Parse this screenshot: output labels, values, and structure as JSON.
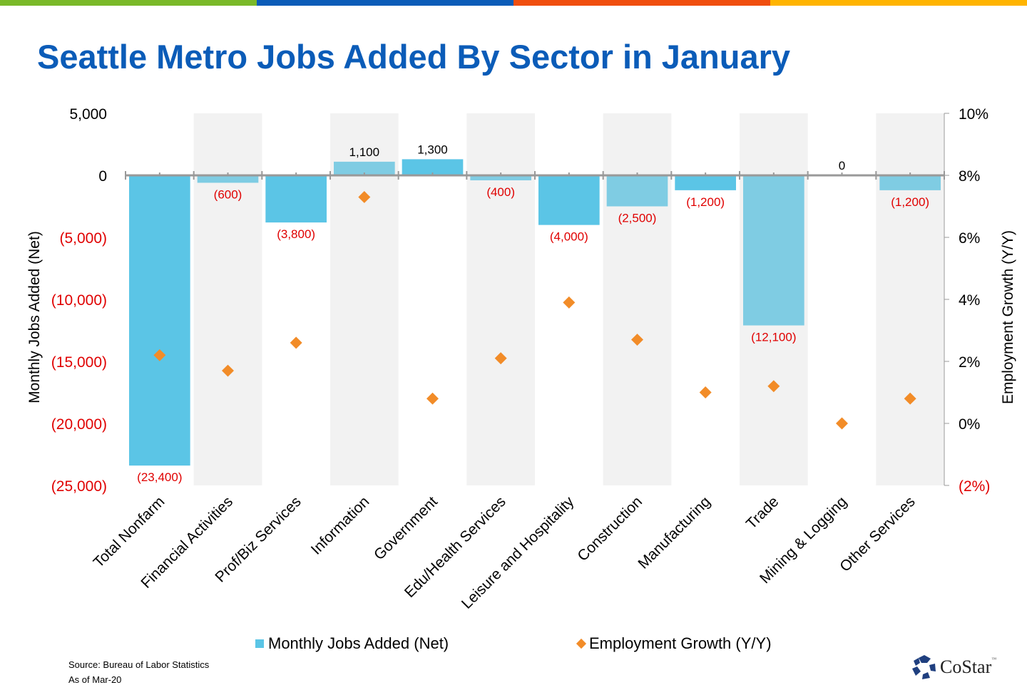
{
  "title": "Seattle Metro Jobs Added By Sector in January",
  "stripe_colors": [
    "#7AB929",
    "#0B5CB8",
    "#F04E0E",
    "#FFB400"
  ],
  "chart_data": {
    "type": "bar+scatter",
    "title": "Seattle Metro Jobs Added By Sector in January",
    "categories": [
      "Total Nonfarm",
      "Financial Activities",
      "Prof/Biz Services",
      "Information",
      "Government",
      "Edu/Health Services",
      "Leisure and Hospitality",
      "Construction",
      "Manufacturing",
      "Trade",
      "Mining & Logging",
      "Other Services"
    ],
    "series": [
      {
        "name": "Monthly Jobs Added (Net)",
        "type": "bar",
        "axis": "left",
        "values": [
          -23400,
          -600,
          -3800,
          1100,
          1300,
          -400,
          -4000,
          -2500,
          -1200,
          -12100,
          0,
          -1200
        ],
        "data_labels": [
          "(23,400)",
          "(600)",
          "(3,800)",
          "1,100",
          "1,300",
          "(400)",
          "(4,000)",
          "(2,500)",
          "(1,200)",
          "(12,100)",
          "0",
          "(1,200)"
        ],
        "color": "#5BC5E6",
        "alt_color": "#7FCCE3"
      },
      {
        "name": "Employment Growth (Y/Y)",
        "type": "scatter",
        "marker": "diamond",
        "axis": "right",
        "values": [
          2.2,
          1.7,
          2.6,
          7.3,
          0.8,
          2.1,
          3.9,
          2.7,
          1.0,
          1.2,
          0.0,
          0.8
        ],
        "color": "#F28C28"
      }
    ],
    "ylabel": "Monthly Jobs Added (Net)",
    "ylim": [
      -25000,
      5000
    ],
    "yticks": [
      5000,
      0,
      -5000,
      -10000,
      -15000,
      -20000,
      -25000
    ],
    "ytick_labels": [
      "5,000",
      "0",
      "(5,000)",
      "(10,000)",
      "(15,000)",
      "(20,000)",
      "(25,000)"
    ],
    "y2label": "Employment Growth (Y/Y)",
    "y2lim": [
      -2,
      10
    ],
    "y2ticks": [
      10,
      8,
      6,
      4,
      2,
      0,
      -2
    ],
    "y2tick_labels": [
      "10%",
      "8%",
      "6%",
      "4%",
      "2%",
      "0%",
      "(2%)"
    ],
    "negative_color": "#E00000",
    "band_color": "#F2F2F2",
    "legend_position": "bottom"
  },
  "source": "Source: Bureau of Labor Statistics",
  "as_of": "As of Mar-20",
  "logo": "CoStar"
}
